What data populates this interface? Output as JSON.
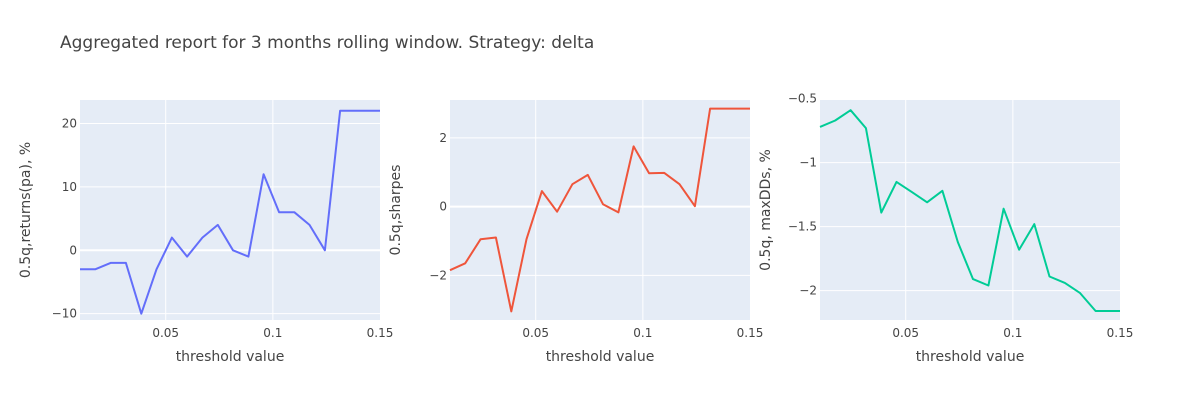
{
  "figure": {
    "title": "Aggregated report for 3 months rolling window. Strategy: delta"
  },
  "chart_data": [
    {
      "type": "line",
      "title": "",
      "xlabel": "threshold value",
      "ylabel": "0.5q,returns(pa), %",
      "xlim": [
        0.01,
        0.15
      ],
      "ylim": [
        -11,
        23.7
      ],
      "x_ticks": [
        0.05,
        0.1,
        0.15
      ],
      "x_tick_labels": [
        "0.05",
        "0.1",
        "0.15"
      ],
      "y_ticks": [
        -10,
        0,
        10,
        20
      ],
      "y_tick_labels": [
        "−10",
        "0",
        "10",
        "20"
      ],
      "grid": true,
      "legend": "none",
      "series": [
        {
          "color": "#636efa",
          "x": [
            0.01,
            0.0171,
            0.0243,
            0.0314,
            0.0386,
            0.0457,
            0.0529,
            0.06,
            0.0671,
            0.0743,
            0.0814,
            0.0886,
            0.0957,
            0.1029,
            0.11,
            0.1171,
            0.1243,
            0.1314,
            0.1386,
            0.1457,
            0.15
          ],
          "y": [
            -3,
            -3,
            -2,
            -2,
            -10,
            -3,
            2,
            -1,
            2,
            4,
            0,
            -1,
            12,
            6,
            6,
            4,
            0,
            22,
            22,
            22,
            22
          ]
        }
      ]
    },
    {
      "type": "line",
      "title": "",
      "xlabel": "threshold value",
      "ylabel": "0.5q,sharpes",
      "xlim": [
        0.01,
        0.15
      ],
      "ylim": [
        -3.3,
        3.1
      ],
      "x_ticks": [
        0.05,
        0.1,
        0.15
      ],
      "x_tick_labels": [
        "0.05",
        "0.1",
        "0.15"
      ],
      "y_ticks": [
        -2,
        0,
        2
      ],
      "y_tick_labels": [
        "−2",
        "0",
        "2"
      ],
      "grid": true,
      "legend": "none",
      "series": [
        {
          "color": "#ef553b",
          "x": [
            0.01,
            0.0171,
            0.0243,
            0.0314,
            0.0386,
            0.0457,
            0.0529,
            0.06,
            0.0671,
            0.0743,
            0.0814,
            0.0886,
            0.0957,
            0.1029,
            0.11,
            0.1171,
            0.1243,
            0.1314,
            0.1386,
            0.1457,
            0.15
          ],
          "y": [
            -1.85,
            -1.65,
            -0.95,
            -0.9,
            -3.05,
            -0.95,
            0.45,
            -0.15,
            0.65,
            0.92,
            0.07,
            -0.17,
            1.75,
            0.97,
            0.98,
            0.65,
            0.01,
            2.85,
            2.85,
            2.85,
            2.85
          ]
        }
      ]
    },
    {
      "type": "line",
      "title": "",
      "xlabel": "threshold value",
      "ylabel": "0.5q, maxDDs, %",
      "xlim": [
        0.01,
        0.15
      ],
      "ylim": [
        -2.23,
        -0.51
      ],
      "x_ticks": [
        0.05,
        0.1,
        0.15
      ],
      "x_tick_labels": [
        "0.05",
        "0.1",
        "0.15"
      ],
      "y_ticks": [
        -0.5,
        -1,
        -1.5,
        -2
      ],
      "y_tick_labels": [
        "−0.5",
        "−1",
        "−1.5",
        "−2"
      ],
      "grid": true,
      "legend": "none",
      "series": [
        {
          "color": "#00cc96",
          "x": [
            0.01,
            0.0171,
            0.0243,
            0.0314,
            0.0386,
            0.0457,
            0.0529,
            0.06,
            0.0671,
            0.0743,
            0.0814,
            0.0886,
            0.0957,
            0.1029,
            0.11,
            0.1171,
            0.1243,
            0.1314,
            0.1386,
            0.1457,
            0.15
          ],
          "y": [
            -0.72,
            -0.67,
            -0.59,
            -0.73,
            -1.39,
            -1.15,
            -1.23,
            -1.31,
            -1.22,
            -1.62,
            -1.91,
            -1.96,
            -1.36,
            -1.68,
            -1.48,
            -1.89,
            -1.94,
            -2.02,
            -2.16,
            -2.16,
            -2.16
          ]
        }
      ]
    }
  ]
}
